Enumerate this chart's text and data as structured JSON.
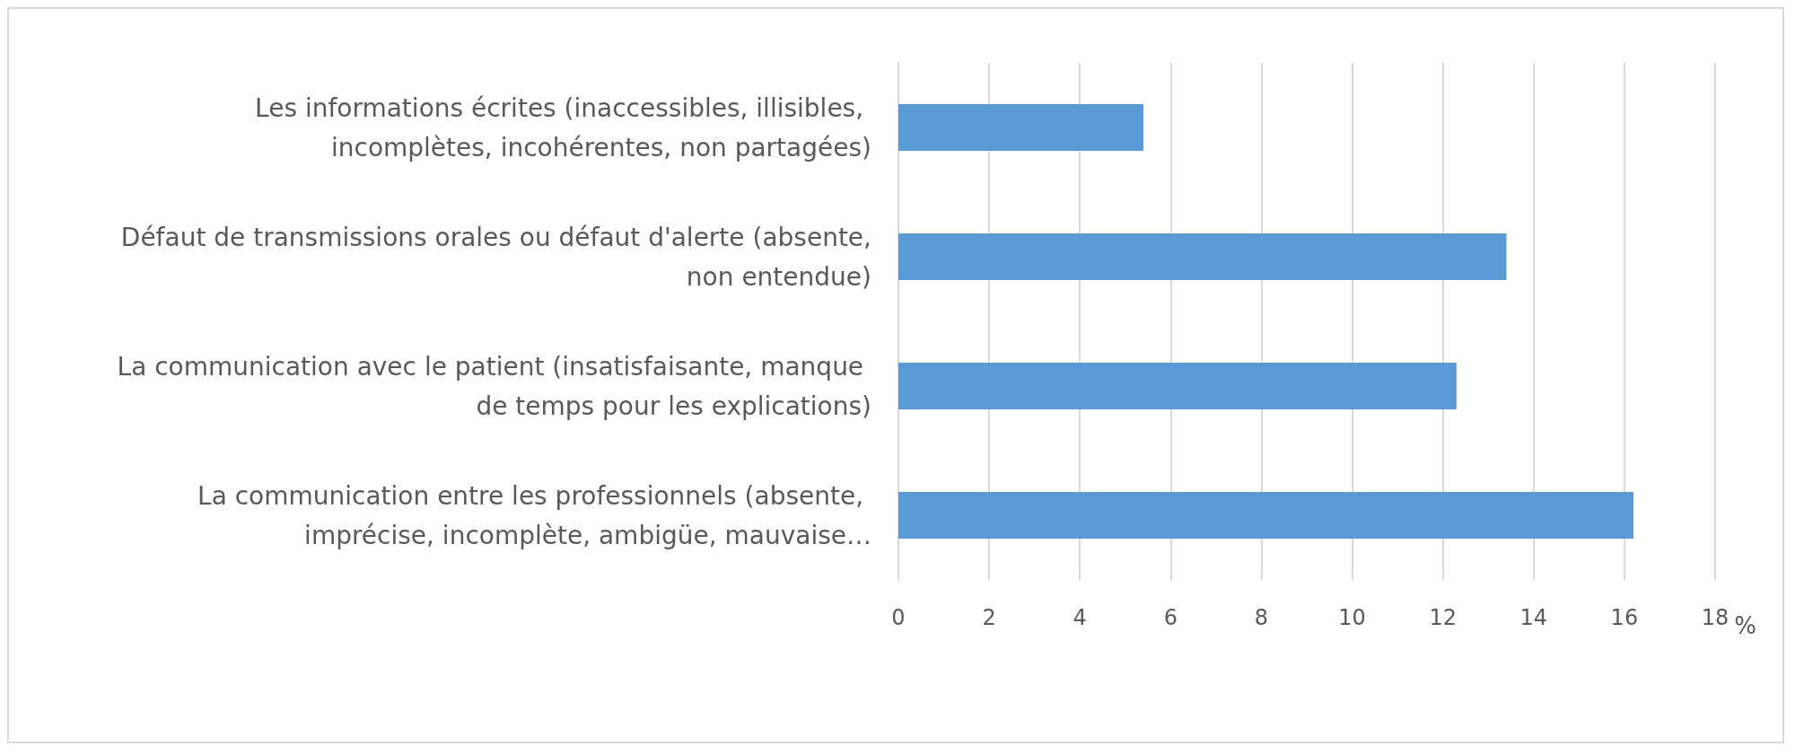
{
  "chart_data": {
    "type": "bar",
    "orientation": "horizontal",
    "categories": [
      "Les informations écrites (inaccessibles, illisibles, incomplètes, incohérentes, non partagées)",
      "Défaut de transmissions orales ou défaut d'alerte (absente, non entendue)",
      "La communication avec le patient (insatisfaisante, manque de temps pour les explications)",
      "La communication entre les professionnels (absente, imprécise, incomplète, ambigüe, mauvaise…"
    ],
    "values": [
      5.4,
      13.4,
      12.3,
      16.2
    ],
    "color": "#5b9bd5",
    "xlabel": "%",
    "xlim": [
      0,
      18
    ],
    "xticks": [
      0,
      2,
      4,
      6,
      8,
      10,
      12,
      14,
      16,
      18
    ],
    "grid": "x"
  }
}
